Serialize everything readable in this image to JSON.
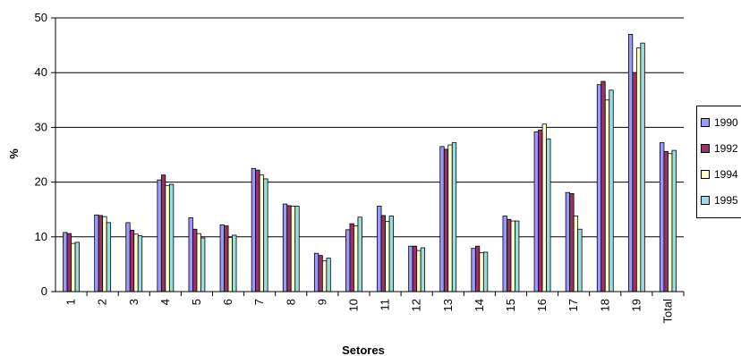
{
  "chart_data": {
    "type": "bar",
    "title": "",
    "xlabel": "Setores",
    "ylabel": "%",
    "ylim": [
      0,
      50
    ],
    "yticks": [
      0,
      10,
      20,
      30,
      40,
      50
    ],
    "grid": "horizontal",
    "legend": "right",
    "categories": [
      "1",
      "2",
      "3",
      "4",
      "5",
      "6",
      "7",
      "8",
      "9",
      "10",
      "11",
      "12",
      "13",
      "14",
      "15",
      "16",
      "17",
      "18",
      "19",
      "Total"
    ],
    "series": [
      {
        "name": "1990",
        "color": "#9999ff",
        "values": [
          10.8,
          14.0,
          12.6,
          20.4,
          13.5,
          12.2,
          22.5,
          16.0,
          7.0,
          11.3,
          15.6,
          8.3,
          26.5,
          7.9,
          13.8,
          29.2,
          18.1,
          37.8,
          47.0,
          27.2
        ]
      },
      {
        "name": "1992",
        "color": "#993366",
        "values": [
          10.6,
          13.9,
          11.2,
          21.3,
          11.4,
          12.0,
          22.2,
          15.7,
          6.6,
          12.4,
          13.9,
          8.3,
          26.0,
          8.3,
          13.2,
          29.5,
          17.9,
          38.4,
          40.0,
          25.6
        ]
      },
      {
        "name": "1994",
        "color": "#ffffcc",
        "values": [
          8.8,
          13.7,
          10.5,
          19.4,
          10.6,
          9.9,
          21.3,
          15.6,
          5.6,
          12.0,
          12.8,
          7.5,
          26.8,
          7.1,
          12.9,
          30.6,
          13.8,
          35.0,
          44.5,
          25.2
        ]
      },
      {
        "name": "1995",
        "color": "#99dddd",
        "values": [
          9.0,
          12.6,
          10.2,
          19.6,
          9.8,
          10.3,
          20.6,
          15.6,
          6.1,
          13.6,
          13.8,
          8.0,
          27.2,
          7.2,
          12.9,
          27.9,
          11.4,
          36.8,
          45.4,
          25.8
        ]
      }
    ]
  }
}
